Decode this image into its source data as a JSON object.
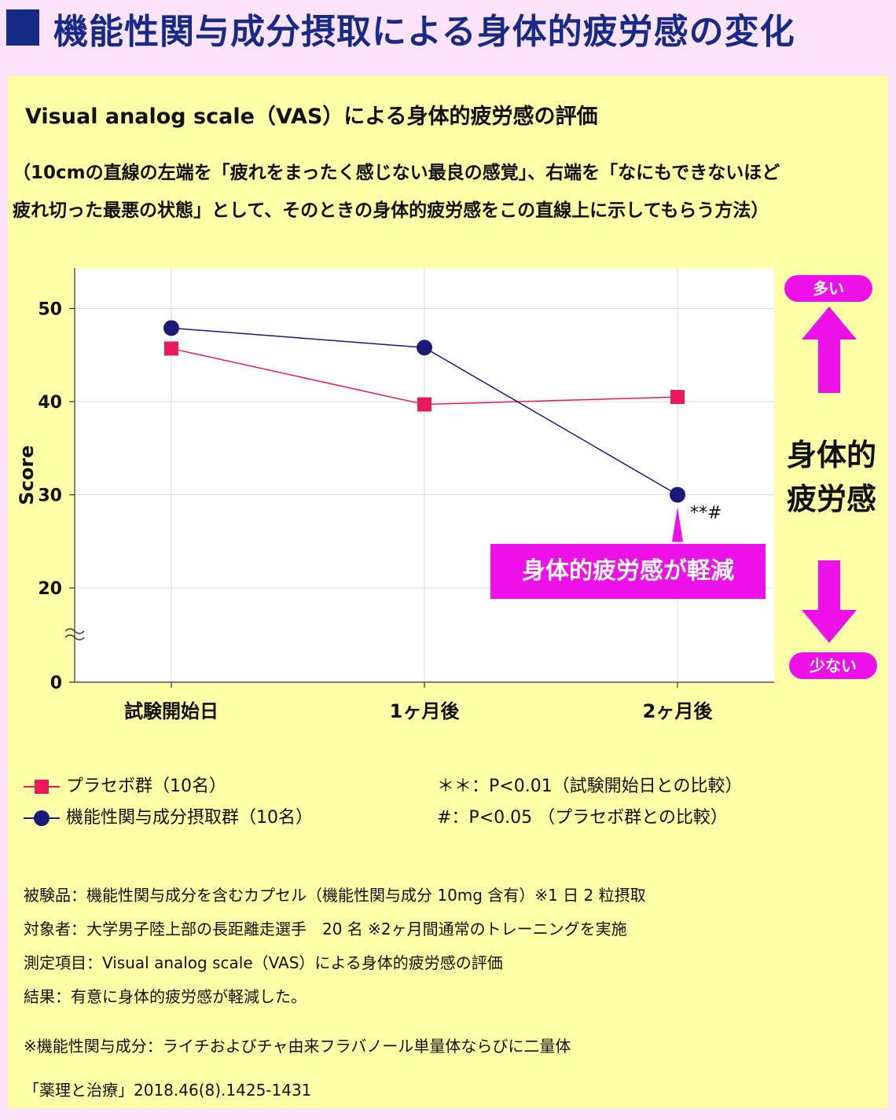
{
  "header": {
    "title": "機能性関与成分摂取による身体的疲労感の変化"
  },
  "subtitle": "Visual analog scale（VAS）による身体的疲労感の評価",
  "description": {
    "line1": "（10cmの直線の左端を「疲れをまったく感じない最良の感覚」、右端を「なにもできないほど",
    "line2": "疲れ切った最悪の状態」として、そのときの身体的疲労感をこの直線上に示してもらう方法）"
  },
  "side": {
    "more_label": "多い",
    "less_label": "少ない",
    "label_line1": "身体的",
    "label_line2": "疲労感"
  },
  "callout": "身体的疲労感が軽減",
  "annotation": "**#",
  "chart_data": {
    "type": "line",
    "title": "",
    "ylabel": "Score",
    "xlabel": "",
    "categories": [
      "試験開始日",
      "1ヶ月後",
      "2ヶ月後"
    ],
    "yticks": [
      0,
      20,
      30,
      40,
      50
    ],
    "ylim": [
      0,
      54
    ],
    "axis_break": "between 0 and 20",
    "grid": true,
    "series": [
      {
        "name": "プラセボ群（10名）",
        "marker": "square",
        "color": "#e8195d",
        "values": [
          45.7,
          39.7,
          40.5
        ]
      },
      {
        "name": "機能性関与成分摂取群（10名）",
        "marker": "circle",
        "color": "#1a1a7a",
        "values": [
          47.9,
          45.8,
          30.0
        ]
      }
    ]
  },
  "significance": {
    "line1": "＊＊：P<0.01（試験開始日との比較）",
    "line2": "#：P<0.05 （プラセボ群との比較）"
  },
  "notes": [
    "被験品：機能性関与成分を含むカプセル（機能性関与成分 10mg 含有）※1 日 2 粒摂取",
    "対象者：大学男子陸上部の長距離走選手　20 名 ※2ヶ月間通常のトレーニングを実施",
    "測定項目：Visual analog scale（VAS）による身体的疲労感の評価",
    "結果：有意に身体的疲労感が軽減した。"
  ],
  "footnote": "※機能性関与成分：ライチおよびチャ由来フラバノール単量体ならびに二量体",
  "reference": "「薬理と治療」2018.46(8).1425-1431"
}
